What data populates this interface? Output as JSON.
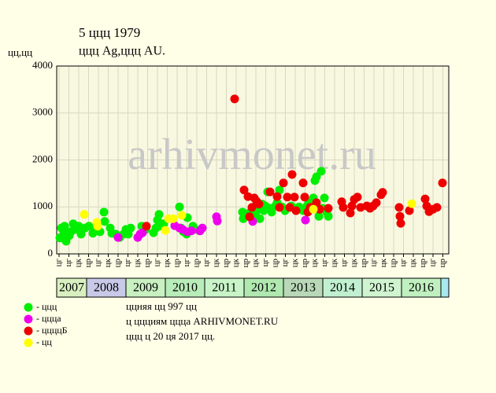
{
  "chart_data": {
    "type": "scatter",
    "title": "5 ццц 1979",
    "subtitle": "ццц Ag,ццц AU.",
    "y_label": "цц,цц",
    "watermark": "arhivmonet.ru",
    "notes": [
      "ццняя цц 997 цц",
      "ц ццциям ццца ARHIVMONET.RU",
      "ццц ц 20 ця 2017 цц."
    ],
    "xlim": [
      2007.24,
      2017.2
    ],
    "ylim": [
      0,
      4000
    ],
    "yticks": [
      0,
      1000,
      2000,
      3000,
      4000
    ],
    "grid": true,
    "xticks": [
      {
        "value": 2007.3,
        "label": "цг"
      },
      {
        "value": 2007.55,
        "label": "цг"
      },
      {
        "value": 2007.8,
        "label": "цк"
      },
      {
        "value": 2008.05,
        "label": "цр"
      },
      {
        "value": 2008.3,
        "label": "цг"
      },
      {
        "value": 2008.55,
        "label": "цк"
      },
      {
        "value": 2008.8,
        "label": "цр"
      },
      {
        "value": 2009.05,
        "label": "цг"
      },
      {
        "value": 2009.3,
        "label": "цк"
      },
      {
        "value": 2009.55,
        "label": "цр"
      },
      {
        "value": 2009.8,
        "label": "цг"
      },
      {
        "value": 2010.05,
        "label": "цк"
      },
      {
        "value": 2010.3,
        "label": "цр"
      },
      {
        "value": 2010.55,
        "label": "цг"
      },
      {
        "value": 2010.8,
        "label": "цр"
      },
      {
        "value": 2011.05,
        "label": "цг"
      },
      {
        "value": 2011.3,
        "label": "цк"
      },
      {
        "value": 2011.55,
        "label": "цр"
      },
      {
        "value": 2011.8,
        "label": "цк"
      },
      {
        "value": 2012.05,
        "label": "цр"
      },
      {
        "value": 2012.3,
        "label": "цк"
      },
      {
        "value": 2012.55,
        "label": "цг"
      },
      {
        "value": 2012.8,
        "label": "цр"
      },
      {
        "value": 2013.05,
        "label": "цг"
      },
      {
        "value": 2013.3,
        "label": "цк"
      },
      {
        "value": 2013.55,
        "label": "цр"
      },
      {
        "value": 2013.8,
        "label": "цк"
      },
      {
        "value": 2014.05,
        "label": "цг"
      },
      {
        "value": 2014.3,
        "label": "цк"
      },
      {
        "value": 2014.55,
        "label": "цг"
      },
      {
        "value": 2014.8,
        "label": "цк"
      },
      {
        "value": 2015.05,
        "label": "цр"
      },
      {
        "value": 2015.3,
        "label": "цг"
      },
      {
        "value": 2015.55,
        "label": "цк"
      },
      {
        "value": 2015.8,
        "label": "цр"
      },
      {
        "value": 2016.05,
        "label": "цг"
      },
      {
        "value": 2016.3,
        "label": "цк"
      },
      {
        "value": 2016.55,
        "label": "цр"
      },
      {
        "value": 2016.8,
        "label": "цг"
      },
      {
        "value": 2017.05,
        "label": "цр"
      }
    ],
    "years": [
      2007,
      2008,
      2009,
      2010,
      2011,
      2012,
      2013,
      2014,
      2015,
      2016
    ],
    "year_colors": [
      "#d8f0c0",
      "#c8c8e8",
      "#c8f0c0",
      "#b8ecb8",
      "#c8f4c8",
      "#b0e8b0",
      "#b8d8b8",
      "#c0f0d0",
      "#d0f4d0",
      "#c0f0c0"
    ],
    "year_end_color": "#a8e8f0",
    "series": [
      {
        "name": "- ццц",
        "color": "#00ee00",
        "x": [
          2007.32,
          2007.36,
          2007.4,
          2007.44,
          2007.48,
          2007.52,
          2007.56,
          2007.6,
          2007.66,
          2007.7,
          2007.8,
          2007.86,
          2007.96,
          2008.06,
          2008.16,
          2008.24,
          2008.34,
          2008.44,
          2008.46,
          2008.6,
          2008.64,
          2008.74,
          2008.84,
          2008.94,
          2009.0,
          2009.06,
          2009.12,
          2009.4,
          2009.5,
          2009.7,
          2009.76,
          2009.8,
          2009.84,
          2009.9,
          2009.96,
          2010.36,
          2010.4,
          2010.46,
          2010.54,
          2010.56,
          2010.7,
          2010.76,
          2011.96,
          2011.98,
          2012.16,
          2012.2,
          2012.3,
          2012.36,
          2012.4,
          2012.46,
          2012.5,
          2012.54,
          2012.6,
          2012.66,
          2012.7,
          2012.8,
          2012.84,
          2012.9,
          2012.96,
          2013.04,
          2013.2,
          2013.3,
          2013.4,
          2013.5,
          2013.6,
          2013.64,
          2013.7,
          2013.76,
          2013.8,
          2013.84,
          2013.86,
          2013.9,
          2013.96,
          2014.0,
          2014.04,
          2014.1,
          2014.14
        ],
        "values": [
          340,
          550,
          390,
          590,
          270,
          440,
          390,
          470,
          640,
          520,
          590,
          420,
          550,
          590,
          440,
          520,
          470,
          890,
          690,
          550,
          440,
          420,
          350,
          420,
          520,
          420,
          550,
          590,
          520,
          450,
          550,
          720,
          840,
          590,
          640,
          1000,
          550,
          470,
          420,
          770,
          590,
          520,
          890,
          750,
          890,
          800,
          890,
          970,
          750,
          1060,
          920,
          1020,
          1320,
          970,
          890,
          1020,
          1090,
          1360,
          1000,
          920,
          1020,
          950,
          1000,
          920,
          1020,
          1090,
          1060,
          1190,
          1560,
          1640,
          970,
          800,
          1760,
          970,
          1190,
          890,
          800
        ]
      },
      {
        "name": "- ццца",
        "color": "#ee00ee",
        "x": [
          2008.8,
          2009.3,
          2009.36,
          2009.42,
          2010.24,
          2010.36,
          2010.44,
          2010.56,
          2010.66,
          2010.88,
          2010.94,
          2011.3,
          2011.32,
          2012.22,
          2013.56
        ],
        "values": [
          350,
          350,
          420,
          450,
          600,
          550,
          520,
          470,
          490,
          490,
          550,
          790,
          700,
          690,
          720
        ]
      },
      {
        "name": "- ццццБ",
        "color": "#ee0000",
        "x": [
          2009.52,
          2011.76,
          2012.0,
          2012.1,
          2012.14,
          2012.2,
          2012.26,
          2012.32,
          2012.38,
          2012.66,
          2012.84,
          2012.9,
          2013.0,
          2013.1,
          2013.16,
          2013.22,
          2013.28,
          2013.32,
          2013.5,
          2013.54,
          2013.62,
          2013.68,
          2013.84,
          2013.92,
          2014.14,
          2014.48,
          2014.52,
          2014.7,
          2014.74,
          2014.8,
          2014.88,
          2014.96,
          2015.12,
          2015.2,
          2015.28,
          2015.36,
          2015.48,
          2015.52,
          2015.94,
          2015.96,
          2015.98,
          2016.2,
          2016.6,
          2016.64,
          2016.7,
          2016.8,
          2016.9,
          2017.04
        ],
        "values": [
          590,
          3300,
          1360,
          1220,
          790,
          990,
          1190,
          1120,
          1060,
          1320,
          1220,
          990,
          1510,
          1210,
          990,
          1690,
          1210,
          920,
          1510,
          1210,
          890,
          990,
          1090,
          950,
          970,
          1110,
          990,
          870,
          1020,
          1160,
          1210,
          990,
          1020,
          970,
          1020,
          1090,
          1260,
          1310,
          990,
          800,
          650,
          920,
          1170,
          1020,
          900,
          950,
          990,
          1510
        ]
      },
      {
        "name": "- цц",
        "color": "#ffff00",
        "x": [
          2007.94,
          2008.26,
          2008.28,
          2010.0,
          2010.08,
          2010.2,
          2010.42,
          2013.76,
          2016.26
        ],
        "values": [
          840,
          670,
          590,
          500,
          750,
          750,
          820,
          950,
          1070
        ]
      }
    ]
  }
}
